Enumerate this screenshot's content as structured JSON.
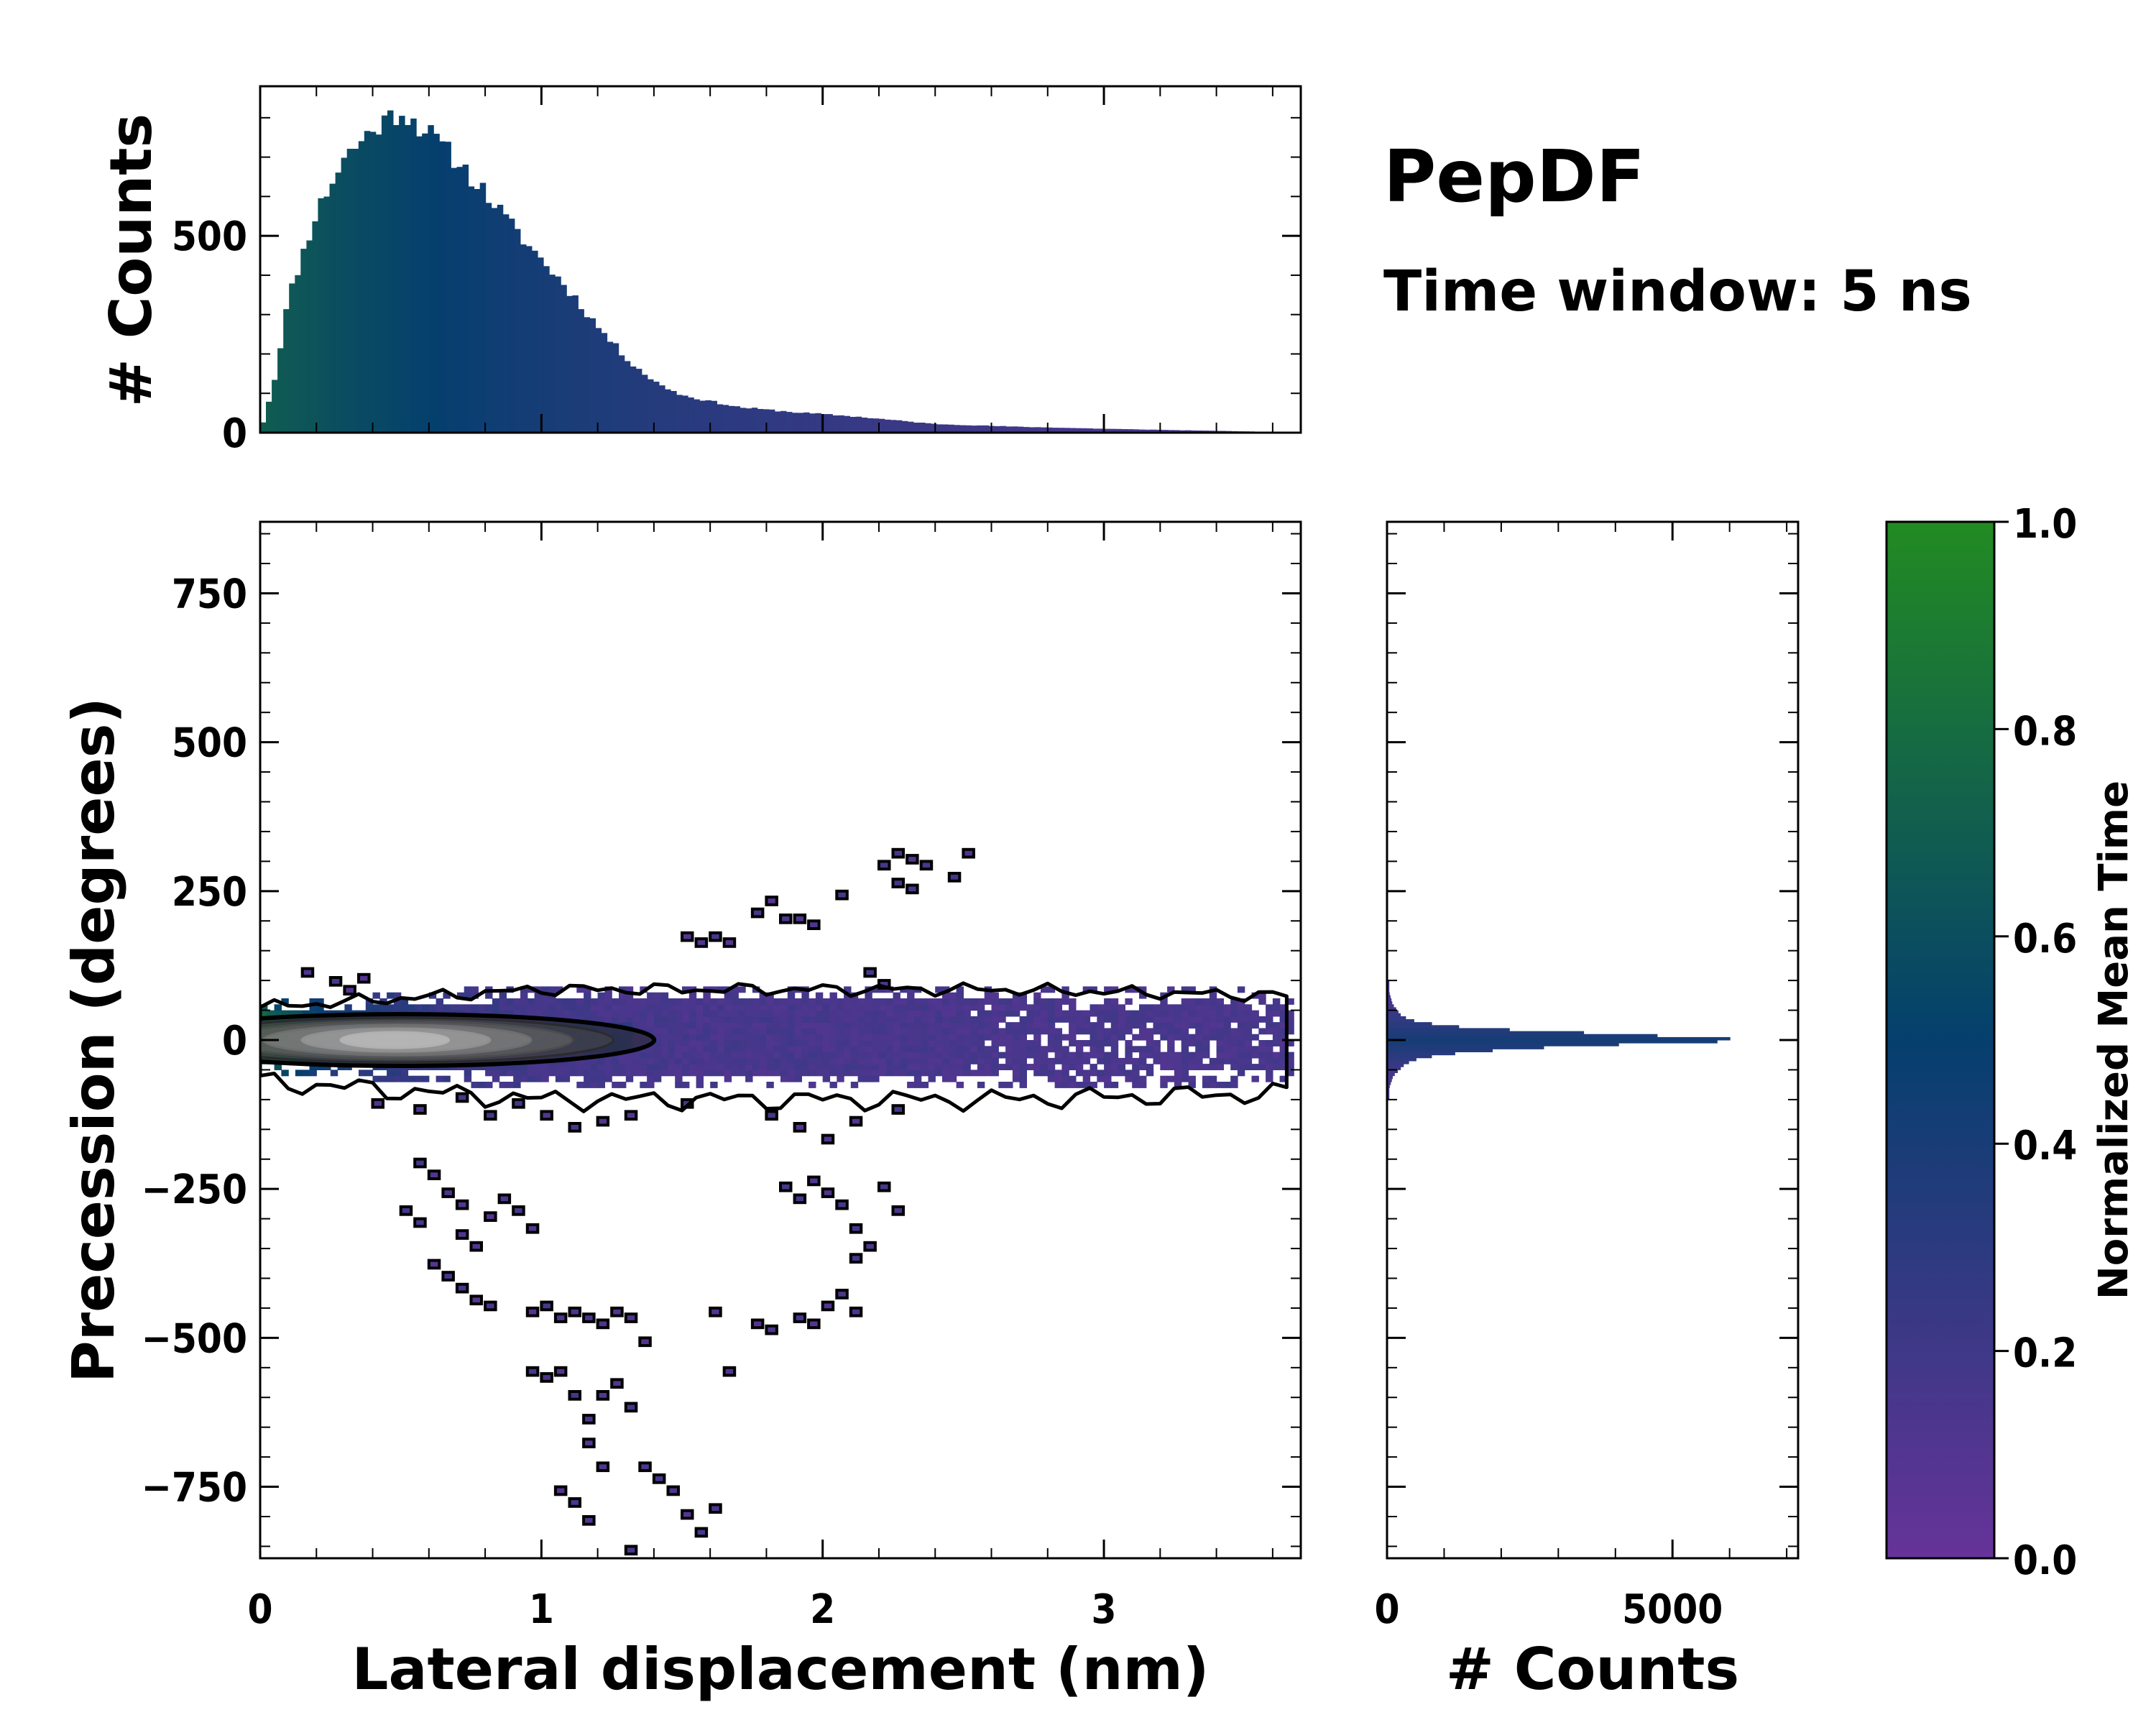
{
  "chart_data": {
    "type": "heatmap",
    "title": "PepDF",
    "subtitle": "Time window: 5 ns",
    "colors": {
      "cmap_low": "#663399",
      "cmap_mid": "#053f6e",
      "cmap_high": "#228b22",
      "contour": "#000000"
    },
    "main": {
      "xlabel": "Lateral displacement (nm)",
      "ylabel": "Precession (degrees)",
      "xlim": [
        0,
        3.7
      ],
      "ylim": [
        -870,
        870
      ],
      "xticks": [
        "0",
        "1",
        "2",
        "3"
      ],
      "yticks": [
        "−750",
        "−500",
        "−250",
        "0",
        "250",
        "500",
        "750"
      ],
      "core_band": {
        "x_range": [
          0,
          3.65
        ],
        "y_range": [
          -90,
          90
        ],
        "mean_time_near_origin": 0.9,
        "mean_time_far": 0.1
      },
      "density_peak": {
        "x": 0.5,
        "y": 0,
        "contour_levels": 6
      },
      "sparse_branches": [
        {
          "name": "upper-branch",
          "x_range": [
            1.4,
            2.55
          ],
          "y_range": [
            90,
            330
          ]
        },
        {
          "name": "lower-left-branch",
          "x_range": [
            0.2,
            1.4
          ],
          "y_range": [
            -870,
            -200
          ]
        },
        {
          "name": "lower-right-branch",
          "x_range": [
            1.6,
            2.2
          ],
          "y_range": [
            -660,
            -150
          ]
        }
      ]
    },
    "top_histogram": {
      "ylabel": "# Counts",
      "yticks": [
        "0",
        "500"
      ],
      "ylim": [
        0,
        880
      ],
      "bins": 180,
      "peak": {
        "x": 0.5,
        "count": 820
      },
      "profile": [
        {
          "x": 0.0,
          "count": 0
        },
        {
          "x": 0.05,
          "count": 130
        },
        {
          "x": 0.1,
          "count": 340
        },
        {
          "x": 0.2,
          "count": 560
        },
        {
          "x": 0.3,
          "count": 700
        },
        {
          "x": 0.4,
          "count": 770
        },
        {
          "x": 0.5,
          "count": 820
        },
        {
          "x": 0.6,
          "count": 760
        },
        {
          "x": 0.7,
          "count": 690
        },
        {
          "x": 0.8,
          "count": 610
        },
        {
          "x": 0.9,
          "count": 520
        },
        {
          "x": 1.0,
          "count": 440
        },
        {
          "x": 1.1,
          "count": 360
        },
        {
          "x": 1.2,
          "count": 270
        },
        {
          "x": 1.3,
          "count": 190
        },
        {
          "x": 1.4,
          "count": 130
        },
        {
          "x": 1.5,
          "count": 95
        },
        {
          "x": 1.7,
          "count": 65
        },
        {
          "x": 1.9,
          "count": 52
        },
        {
          "x": 2.1,
          "count": 42
        },
        {
          "x": 2.4,
          "count": 22
        },
        {
          "x": 2.7,
          "count": 15
        },
        {
          "x": 3.0,
          "count": 10
        },
        {
          "x": 3.3,
          "count": 6
        },
        {
          "x": 3.6,
          "count": 2
        },
        {
          "x": 3.7,
          "count": 0
        }
      ]
    },
    "right_histogram": {
      "xlabel": "# Counts",
      "xticks": [
        "0",
        "5000"
      ],
      "xlim": [
        0,
        7200
      ],
      "bin_width_deg": 10,
      "peak": {
        "y": 0,
        "count": 6650
      },
      "profile": [
        {
          "y": -80,
          "count": 40
        },
        {
          "y": -60,
          "count": 110
        },
        {
          "y": -40,
          "count": 320
        },
        {
          "y": -30,
          "count": 580
        },
        {
          "y": -20,
          "count": 1400
        },
        {
          "y": -10,
          "count": 3200
        },
        {
          "y": 0,
          "count": 6650
        },
        {
          "y": 10,
          "count": 4100
        },
        {
          "y": 20,
          "count": 1500
        },
        {
          "y": 30,
          "count": 550
        },
        {
          "y": 40,
          "count": 260
        },
        {
          "y": 60,
          "count": 100
        },
        {
          "y": 80,
          "count": 40
        }
      ]
    },
    "colorbar": {
      "label": "Normalized Mean Time",
      "range": [
        0.0,
        1.0
      ],
      "ticks": [
        "0.0",
        "0.2",
        "0.4",
        "0.6",
        "0.8",
        "1.0"
      ]
    }
  }
}
